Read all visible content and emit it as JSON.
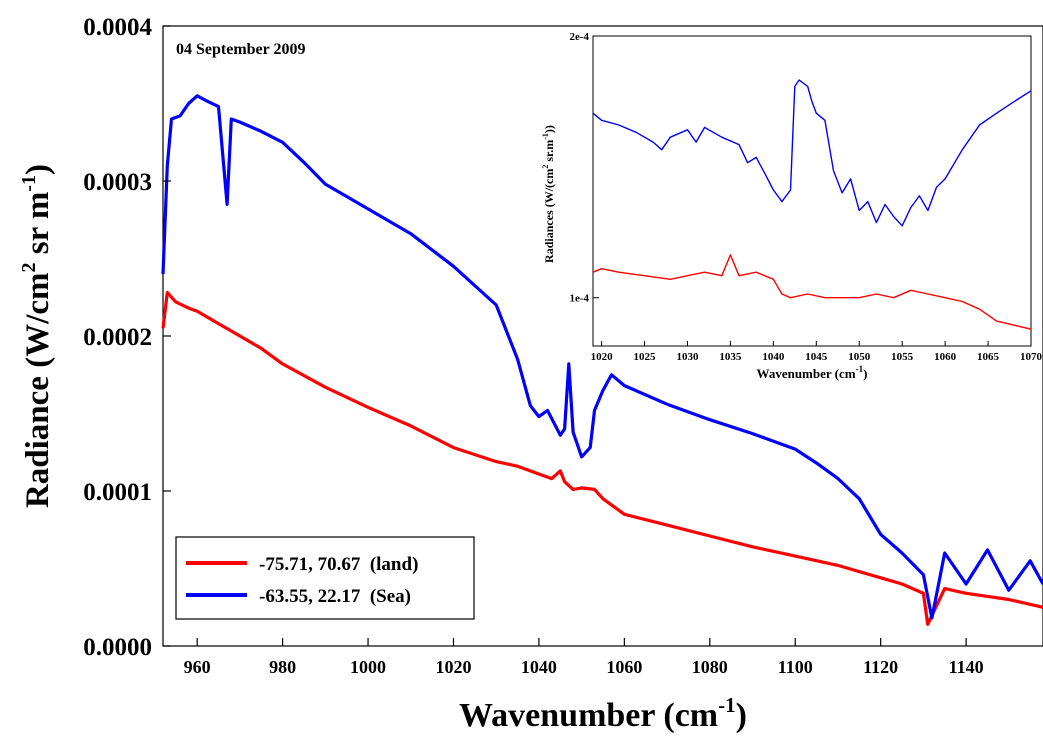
{
  "chart_data": [
    {
      "type": "line",
      "annotation": "04 September 2009",
      "xlabel_main": "Wavenumber (cm",
      "xlabel_sup": "-1",
      "xlabel_end": ")",
      "ylabel_main": "Radiance (W/cm",
      "ylabel_sup1": "2",
      "ylabel_mid": " sr m",
      "ylabel_sup2": "-1",
      "ylabel_end": ")",
      "xlim": [
        952,
        1158
      ],
      "ylim": [
        0,
        0.0004
      ],
      "x_ticks": [
        "960",
        "980",
        "1000",
        "1020",
        "1040",
        "1060",
        "1080",
        "1100",
        "1120",
        "1140"
      ],
      "x_tick_values": [
        960,
        980,
        1000,
        1020,
        1040,
        1060,
        1080,
        1100,
        1120,
        1140
      ],
      "y_ticks": [
        "0.0000",
        "0.0001",
        "0.0002",
        "0.0003",
        "0.0004"
      ],
      "y_tick_values": [
        0,
        0.0001,
        0.0002,
        0.0003,
        0.0004
      ],
      "legend_position": "bottom-left",
      "series": [
        {
          "name": "-75.71, 70.67  (land)",
          "color": "#ff0000",
          "x": [
            952,
            953,
            955,
            958,
            960,
            965,
            970,
            975,
            980,
            990,
            1000,
            1010,
            1020,
            1030,
            1035,
            1040,
            1043,
            1045,
            1046,
            1048,
            1050,
            1053,
            1055,
            1058,
            1060,
            1070,
            1080,
            1090,
            1100,
            1110,
            1115,
            1120,
            1125,
            1130,
            1131,
            1135,
            1140,
            1150,
            1158
          ],
          "y": [
            0.000205,
            0.000228,
            0.000222,
            0.000218,
            0.000216,
            0.000208,
            0.0002,
            0.000192,
            0.000182,
            0.000167,
            0.000154,
            0.000142,
            0.000128,
            0.000119,
            0.000116,
            0.000111,
            0.000108,
            0.000113,
            0.000106,
            0.000101,
            0.000102,
            0.000101,
            9.5e-05,
            8.9e-05,
            8.5e-05,
            7.8e-05,
            7.1e-05,
            6.4e-05,
            5.8e-05,
            5.2e-05,
            4.8e-05,
            4.4e-05,
            4e-05,
            3.4e-05,
            1.4e-05,
            3.7e-05,
            3.4e-05,
            3e-05,
            2.5e-05
          ]
        },
        {
          "name": "-63.55, 22.17  (Sea)",
          "color": "#0000ff",
          "x": [
            952,
            953,
            954,
            956,
            958,
            960,
            962,
            965,
            967,
            968,
            970,
            975,
            980,
            985,
            990,
            1000,
            1010,
            1020,
            1030,
            1035,
            1038,
            1040,
            1042,
            1045,
            1046,
            1047,
            1048,
            1049,
            1050,
            1052,
            1053,
            1055,
            1057,
            1060,
            1070,
            1080,
            1090,
            1100,
            1105,
            1110,
            1115,
            1120,
            1125,
            1130,
            1132,
            1135,
            1140,
            1145,
            1150,
            1155,
            1158
          ],
          "y": [
            0.00024,
            0.00031,
            0.00034,
            0.000342,
            0.00035,
            0.000355,
            0.000352,
            0.000348,
            0.000285,
            0.00034,
            0.000338,
            0.000332,
            0.000325,
            0.000312,
            0.000298,
            0.000282,
            0.000266,
            0.000245,
            0.00022,
            0.000185,
            0.000155,
            0.000148,
            0.000152,
            0.000136,
            0.00014,
            0.000182,
            0.000138,
            0.00013,
            0.000122,
            0.000128,
            0.000152,
            0.000165,
            0.000175,
            0.000168,
            0.000156,
            0.000146,
            0.000137,
            0.000127,
            0.000118,
            0.000108,
            9.5e-05,
            7.2e-05,
            6e-05,
            4.6e-05,
            1.8e-05,
            6e-05,
            4e-05,
            6.2e-05,
            3.6e-05,
            5.5e-05,
            4e-05
          ]
        }
      ]
    },
    {
      "type": "line",
      "title": "",
      "xlabel_main": "Wavenumber (cm",
      "xlabel_sup": "-1",
      "xlabel_end": ")",
      "ylabel_main": "Radiances (W/(cm",
      "ylabel_sup1": "2",
      "ylabel_mid": " sr.m",
      "ylabel_sup2": "-1",
      "ylabel_end": "))",
      "xlim": [
        1019,
        1070
      ],
      "scale_y": "log",
      "ylim": [
        8.8e-05,
        0.0002
      ],
      "x_ticks": [
        "1020",
        "1025",
        "1030",
        "1035",
        "1040",
        "1045",
        "1050",
        "1055",
        "1060",
        "1065",
        "1070"
      ],
      "x_tick_values": [
        1020,
        1025,
        1030,
        1035,
        1040,
        1045,
        1050,
        1055,
        1060,
        1065,
        1070
      ],
      "y_ticks": [
        "1e-4",
        "2e-4"
      ],
      "y_tick_values": [
        0.0001,
        0.0002
      ],
      "series": [
        {
          "name": "",
          "color": "#0000ff",
          "x": [
            1019,
            1020,
            1022,
            1024,
            1026,
            1027,
            1028,
            1030,
            1031,
            1032,
            1034,
            1036,
            1037,
            1038,
            1039,
            1040,
            1041,
            1042,
            1042.5,
            1043,
            1044,
            1044.5,
            1045,
            1046,
            1047,
            1048,
            1049,
            1050,
            1051,
            1052,
            1053,
            1054,
            1055,
            1056,
            1057,
            1058,
            1059,
            1060,
            1062,
            1064,
            1066,
            1068,
            1070
          ],
          "y": [
            0.000163,
            0.00016,
            0.000158,
            0.000155,
            0.000151,
            0.000148,
            0.000153,
            0.000156,
            0.000151,
            0.000157,
            0.000153,
            0.00015,
            0.000143,
            0.000145,
            0.000139,
            0.000133,
            0.000129,
            0.000133,
            0.000175,
            0.000178,
            0.000175,
            0.000168,
            0.000163,
            0.00016,
            0.00014,
            0.000132,
            0.000137,
            0.000126,
            0.000129,
            0.000122,
            0.000128,
            0.000124,
            0.000121,
            0.000127,
            0.000131,
            0.000126,
            0.000134,
            0.000137,
            0.000148,
            0.000158,
            0.000163,
            0.000168,
            0.000173
          ]
        },
        {
          "name": "",
          "color": "#ff0000",
          "x": [
            1019,
            1020,
            1022,
            1025,
            1028,
            1030,
            1032,
            1034,
            1035,
            1036,
            1038,
            1040,
            1041,
            1042,
            1044,
            1046,
            1048,
            1050,
            1052,
            1054,
            1056,
            1058,
            1060,
            1062,
            1064,
            1066,
            1068,
            1070
          ],
          "y": [
            0.000107,
            0.000108,
            0.000107,
            0.000106,
            0.000105,
            0.000106,
            0.000107,
            0.000106,
            0.000112,
            0.000106,
            0.000107,
            0.000105,
            0.000101,
            0.0001,
            0.000101,
            0.0001,
            0.0001,
            0.0001,
            0.000101,
            0.0001,
            0.000102,
            0.000101,
            0.0001,
            9.9e-05,
            9.7e-05,
            9.4e-05,
            9.3e-05,
            9.2e-05
          ]
        }
      ]
    }
  ]
}
